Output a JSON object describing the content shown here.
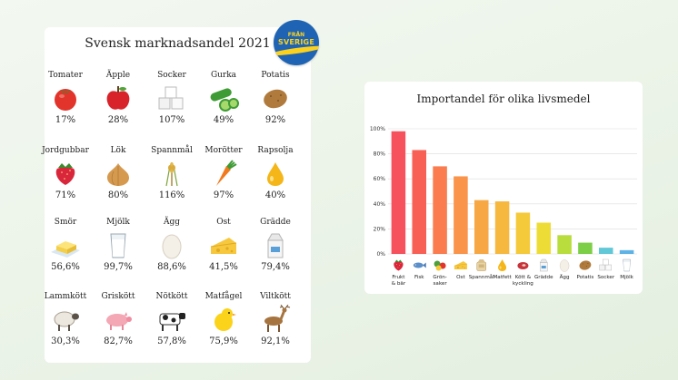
{
  "badge": {
    "line1": "FRÅN",
    "line2": "SVERIGE",
    "bg": "#1f64b4",
    "fg": "#fcd11d"
  },
  "market_share": {
    "title": "Svensk marknadsandel 2021",
    "items": [
      {
        "label": "Tomater",
        "value": "17%",
        "icon": "tomato-icon"
      },
      {
        "label": "Äpple",
        "value": "28%",
        "icon": "apple-icon"
      },
      {
        "label": "Socker",
        "value": "107%",
        "icon": "sugar-cubes-icon"
      },
      {
        "label": "Gurka",
        "value": "49%",
        "icon": "cucumber-icon"
      },
      {
        "label": "Potatis",
        "value": "92%",
        "icon": "potato-icon"
      },
      {
        "label": "Jordgubbar",
        "value": "71%",
        "icon": "strawberry-icon"
      },
      {
        "label": "Lök",
        "value": "80%",
        "icon": "onion-icon"
      },
      {
        "label": "Spannmål",
        "value": "116%",
        "icon": "grain-icon"
      },
      {
        "label": "Morötter",
        "value": "97%",
        "icon": "carrot-icon"
      },
      {
        "label": "Rapsolja",
        "value": "40%",
        "icon": "oil-drop-icon"
      },
      {
        "label": "Smör",
        "value": "56,6%",
        "icon": "butter-icon"
      },
      {
        "label": "Mjölk",
        "value": "99,7%",
        "icon": "milk-glass-icon"
      },
      {
        "label": "Ägg",
        "value": "88,6%",
        "icon": "egg-icon"
      },
      {
        "label": "Ost",
        "value": "41,5%",
        "icon": "cheese-icon"
      },
      {
        "label": "Grädde",
        "value": "79,4%",
        "icon": "cream-carton-icon"
      },
      {
        "label": "Lammkött",
        "value": "30,3%",
        "icon": "sheep-icon"
      },
      {
        "label": "Griskött",
        "value": "82,7%",
        "icon": "pig-icon"
      },
      {
        "label": "Nötkött",
        "value": "57,8%",
        "icon": "cow-icon"
      },
      {
        "label": "Matfågel",
        "value": "75,9%",
        "icon": "chick-icon"
      },
      {
        "label": "Viltkött",
        "value": "92,1%",
        "icon": "deer-icon"
      }
    ]
  },
  "chart_data": {
    "type": "bar",
    "title": "Importandel för olika livsmedel",
    "ylim": [
      0,
      100
    ],
    "yticks": [
      "0%",
      "20%",
      "40%",
      "60%",
      "80%",
      "100%"
    ],
    "ytick_values": [
      0,
      20,
      40,
      60,
      80,
      100
    ],
    "grid": true,
    "categories": [
      {
        "line1": "Frukt",
        "line2": "& bär",
        "icon": "strawberry-icon"
      },
      {
        "line1": "Fisk",
        "line2": "",
        "icon": "fish-icon"
      },
      {
        "line1": "Grön-",
        "line2": "saker",
        "icon": "vegetables-icon"
      },
      {
        "line1": "Ost",
        "line2": "",
        "icon": "cheese-icon"
      },
      {
        "line1": "Spannmål",
        "line2": "",
        "icon": "grain-bag-icon"
      },
      {
        "line1": "Matfett",
        "line2": "",
        "icon": "oil-drop-icon"
      },
      {
        "line1": "Kött &",
        "line2": "kyckling",
        "icon": "meat-icon"
      },
      {
        "line1": "Grädde",
        "line2": "",
        "icon": "cream-carton-icon"
      },
      {
        "line1": "Ägg",
        "line2": "",
        "icon": "egg-icon"
      },
      {
        "line1": "Potatis",
        "line2": "",
        "icon": "potato-icon"
      },
      {
        "line1": "Socker",
        "line2": "",
        "icon": "sugar-cubes-icon"
      },
      {
        "line1": "Mjölk",
        "line2": "",
        "icon": "milk-glass-icon"
      }
    ],
    "values": [
      98,
      83,
      70,
      62,
      43,
      42,
      33,
      25,
      15,
      9,
      5,
      3
    ],
    "colors": [
      "#f5525e",
      "#f85f55",
      "#fa7c4f",
      "#f9944a",
      "#f7a845",
      "#f6b83f",
      "#f4c93a",
      "#eedc36",
      "#b8dd3c",
      "#7ccf47",
      "#62c8d8",
      "#5fb2e6"
    ]
  }
}
